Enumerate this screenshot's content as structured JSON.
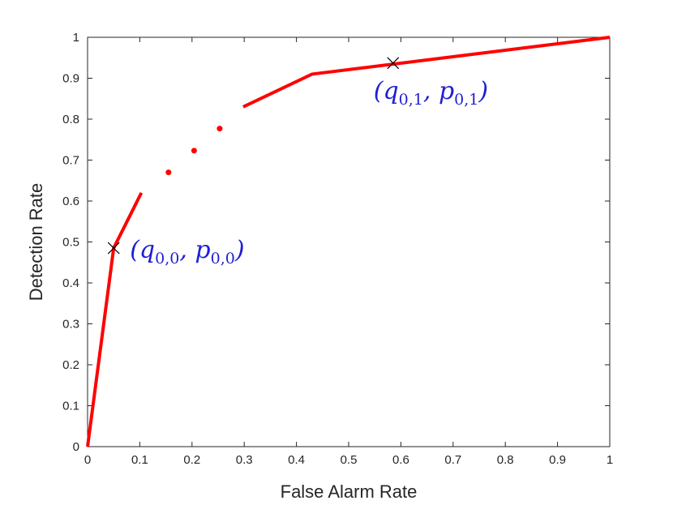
{
  "chart_data": {
    "type": "line",
    "title": "",
    "xlabel": "False Alarm Rate",
    "ylabel": "Detection Rate",
    "xlim": [
      0,
      1
    ],
    "ylim": [
      0,
      1
    ],
    "xticks": [
      "0",
      "0.1",
      "0.2",
      "0.3",
      "0.4",
      "0.5",
      "0.6",
      "0.7",
      "0.8",
      "0.9",
      "1"
    ],
    "yticks": [
      "0",
      "0.1",
      "0.2",
      "0.3",
      "0.4",
      "0.5",
      "0.6",
      "0.7",
      "0.8",
      "0.9",
      "1"
    ],
    "grid": false,
    "line_color": "#ff0000",
    "marker_color": "#000000",
    "annotation_color": "#1f1fd2",
    "series": [
      {
        "values_x": [
          0,
          0.05,
          0.103
        ],
        "values_y": [
          0,
          0.485,
          0.62
        ]
      },
      {
        "values_x": [
          0.298,
          0.43,
          1.0
        ],
        "values_y": [
          0.83,
          0.91,
          1.0
        ]
      }
    ],
    "dots": [
      {
        "x": 0.155,
        "y": 0.67
      },
      {
        "x": 0.204,
        "y": 0.723
      },
      {
        "x": 0.253,
        "y": 0.777
      }
    ],
    "markers": [
      {
        "x": 0.05,
        "y": 0.485,
        "label_main": "(q",
        "label_sub": "0,0",
        "label_mid": ", p",
        "label_sub2": "0,0",
        "label_end": ")"
      },
      {
        "x": 0.585,
        "y": 0.937,
        "label_main": "(q",
        "label_sub": "0,1",
        "label_mid": ", p",
        "label_sub2": "0,1",
        "label_end": ")"
      }
    ]
  }
}
